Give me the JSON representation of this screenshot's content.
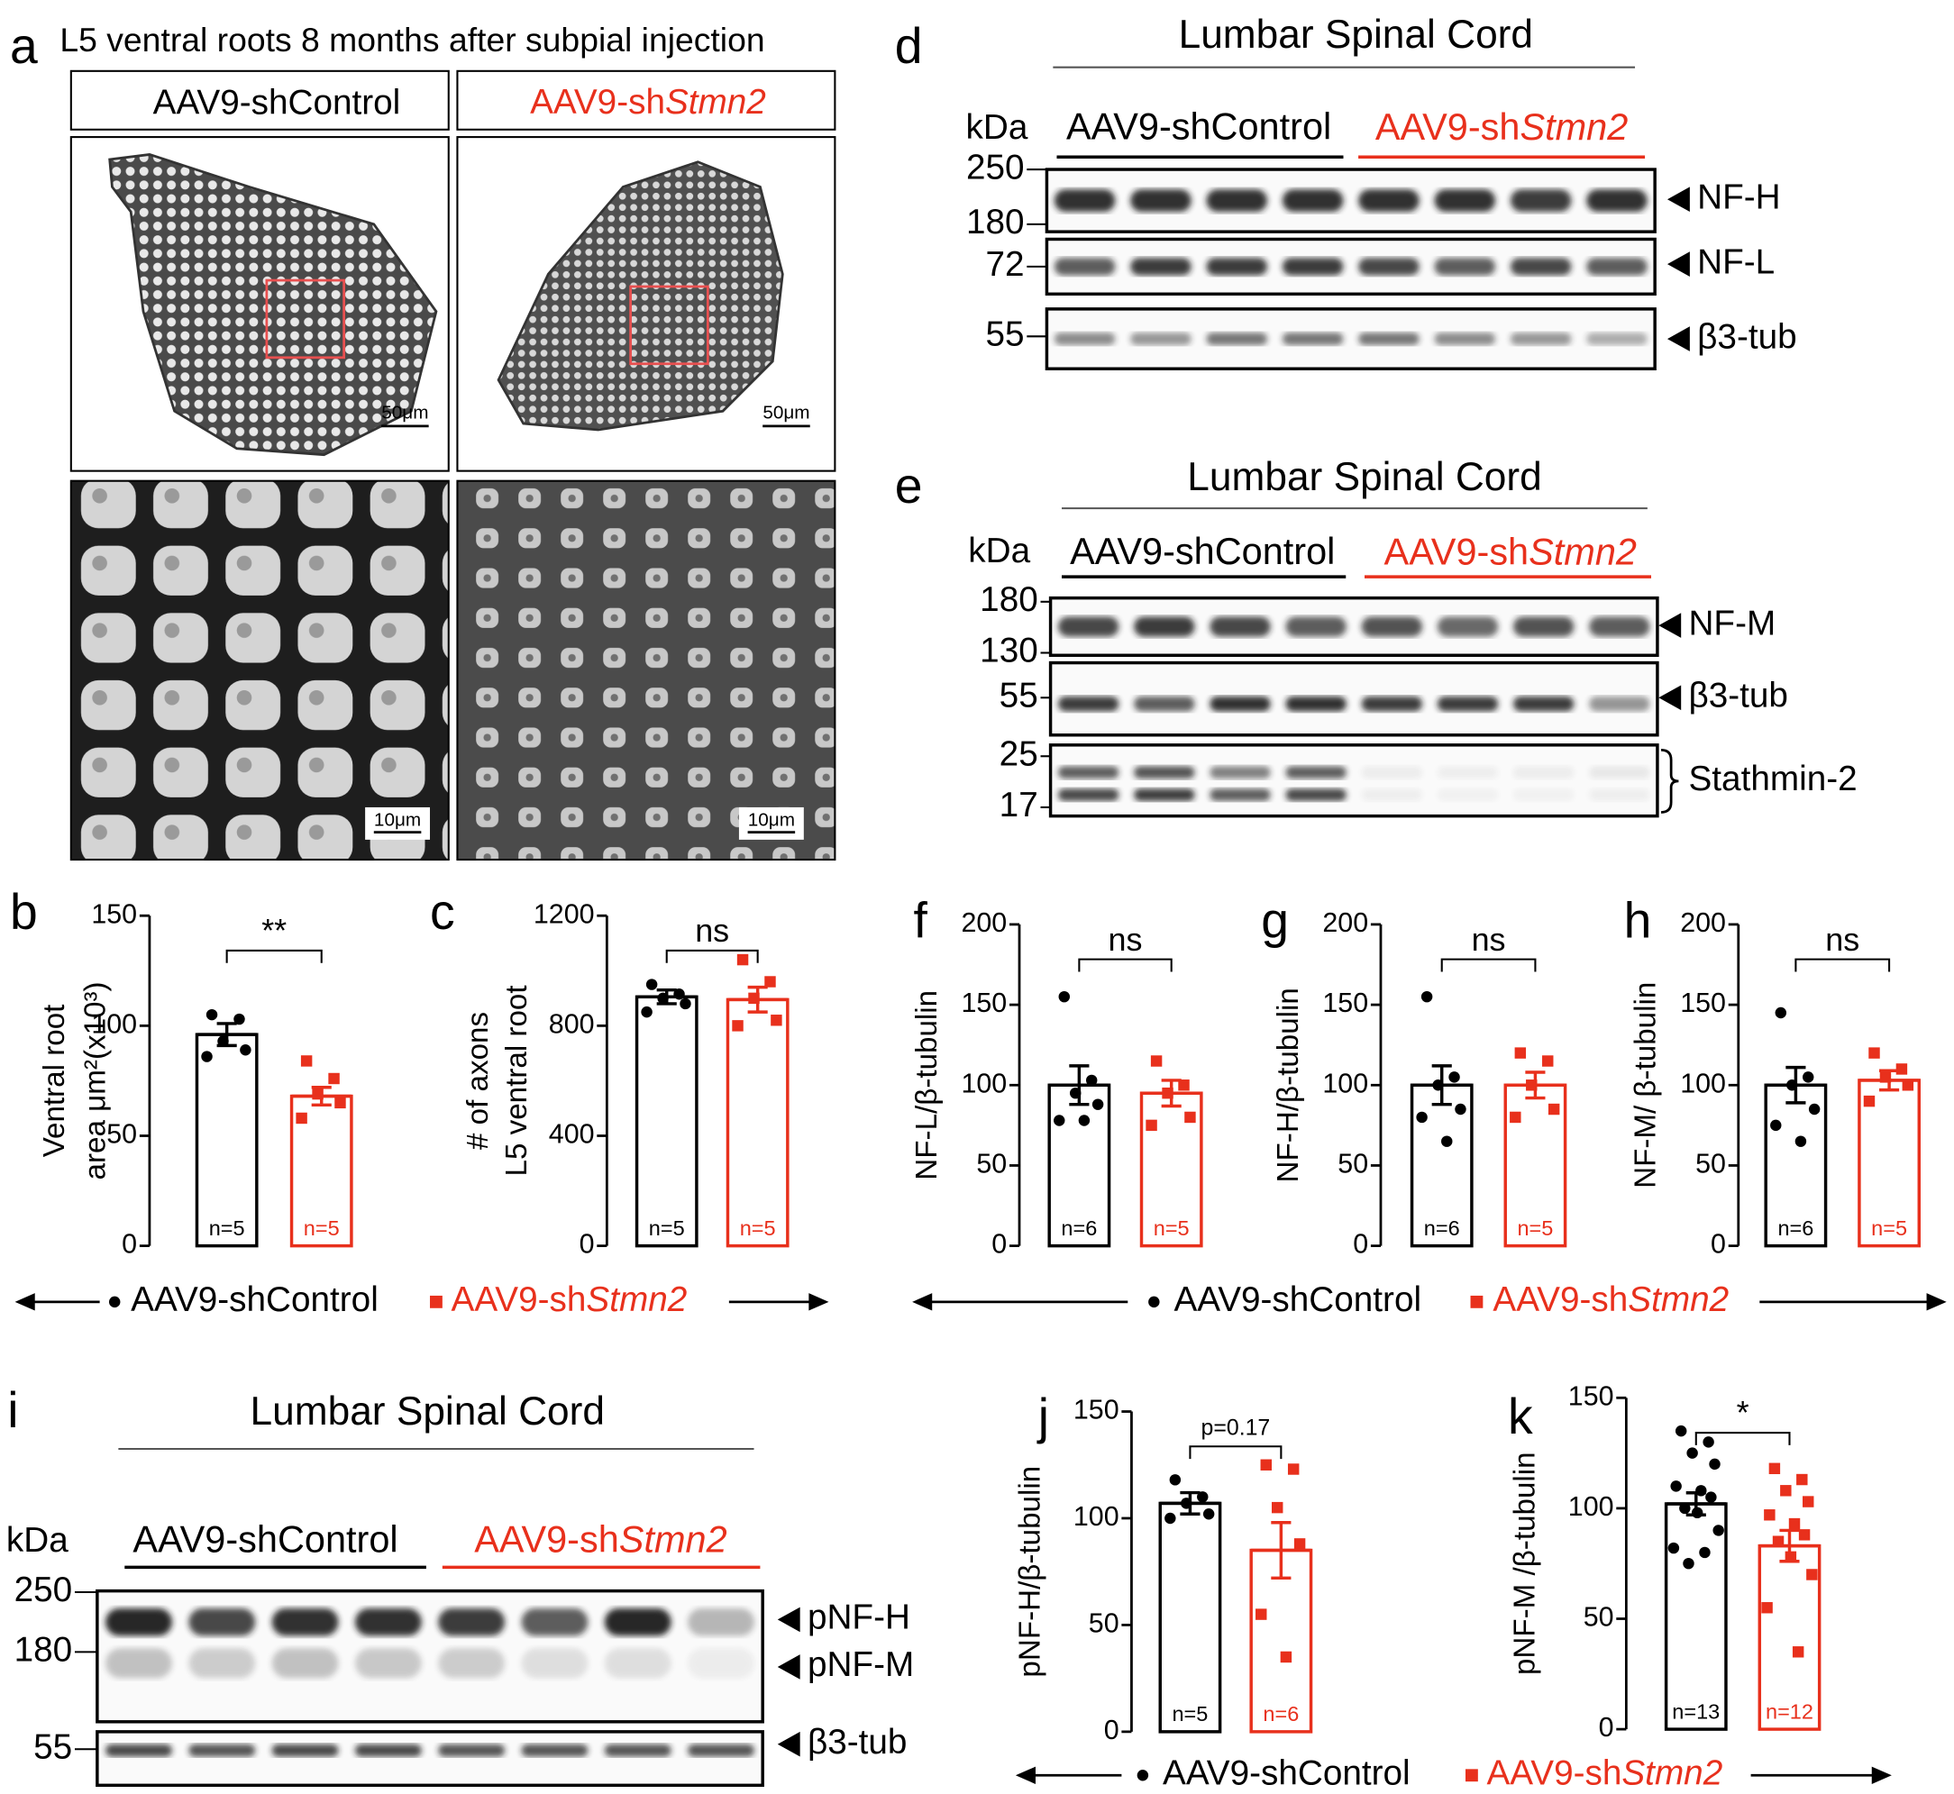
{
  "panel_a": {
    "label": "a",
    "title": "L5 ventral roots 8 months after subpial injection",
    "headers": {
      "control": "AAV9-shControl",
      "knockdown": {
        "prefix": "AAV9-sh",
        "italic": "Stmn2"
      }
    },
    "scale_bars": [
      "50μm",
      "50μm",
      "10μm",
      "10μm"
    ]
  },
  "blots": [
    {
      "label": "d",
      "title": "Lumbar Spinal Cord",
      "kda": "kDa",
      "groups": {
        "control": "AAV9-shControl",
        "knockdown": {
          "prefix": "AAV9-sh",
          "italic": "Stmn2"
        }
      },
      "markers": [
        250,
        180,
        72,
        55
      ],
      "bands": [
        "NF-H",
        "NF-L",
        "β3-tub"
      ]
    },
    {
      "label": "e",
      "title": "Lumbar Spinal Cord",
      "kda": "kDa",
      "groups": {
        "control": "AAV9-shControl",
        "knockdown": {
          "prefix": "AAV9-sh",
          "italic": "Stmn2"
        }
      },
      "markers": [
        180,
        130,
        55,
        25,
        17
      ],
      "bands": [
        "NF-M",
        "β3-tub",
        "Stathmin-2"
      ]
    },
    {
      "label": "i",
      "title": "Lumbar Spinal Cord",
      "kda": "kDa",
      "groups": {
        "control": "AAV9-shControl",
        "knockdown": {
          "prefix": "AAV9-sh",
          "italic": "Stmn2"
        }
      },
      "markers": [
        250,
        180,
        55
      ],
      "bands": [
        "pNF-H",
        "pNF-M",
        "β3-tub"
      ]
    }
  ],
  "legends": [
    {
      "control": "AAV9-shControl",
      "knockdown": {
        "prefix": "AAV9-sh",
        "italic": "Stmn2"
      }
    },
    {
      "control": "AAV9-shControl",
      "knockdown": {
        "prefix": "AAV9-sh",
        "italic": "Stmn2"
      }
    },
    {
      "control": "AAV9-shControl",
      "knockdown": {
        "prefix": "AAV9-sh",
        "italic": "Stmn2"
      }
    }
  ],
  "chart_data": [
    {
      "type": "bar",
      "panel": "b",
      "ylabel": [
        "Ventral root",
        "area μm²(x10³)"
      ],
      "annotation": "**",
      "ylim": [
        0,
        150
      ],
      "yticks": [
        0,
        50,
        100,
        150
      ],
      "colors": [
        "#000000",
        "#e8301c"
      ],
      "values": [
        96,
        68
      ],
      "errors": [
        5,
        4
      ],
      "n_labels": [
        "n=5",
        "n=5"
      ],
      "points": [
        [
          105,
          103,
          93,
          89,
          86
        ],
        [
          84,
          76,
          69,
          65,
          58
        ]
      ]
    },
    {
      "type": "bar",
      "panel": "c",
      "ylabel": [
        "# of axons",
        "L5 ventral root"
      ],
      "annotation": "ns",
      "ylim": [
        0,
        1200
      ],
      "yticks": [
        0,
        400,
        800,
        1200
      ],
      "colors": [
        "#000000",
        "#e8301c"
      ],
      "values": [
        905,
        895
      ],
      "errors": [
        25,
        45
      ],
      "n_labels": [
        "n=5",
        "n=5"
      ],
      "points": [
        [
          950,
          915,
          900,
          880,
          850
        ],
        [
          1040,
          960,
          900,
          820,
          800
        ]
      ]
    },
    {
      "type": "bar",
      "panel": "f",
      "ylabel": [
        "NF-L/β-tubulin"
      ],
      "annotation": "ns",
      "ylim": [
        0,
        200
      ],
      "yticks": [
        0,
        50,
        100,
        150,
        200
      ],
      "colors": [
        "#000000",
        "#e8301c"
      ],
      "values": [
        100,
        95
      ],
      "errors": [
        12,
        8
      ],
      "n_labels": [
        "n=6",
        "n=5"
      ],
      "points": [
        [
          155,
          103,
          95,
          88,
          78,
          78
        ],
        [
          115,
          100,
          95,
          80,
          75
        ]
      ]
    },
    {
      "type": "bar",
      "panel": "g",
      "ylabel": [
        "NF-H/β-tubulin"
      ],
      "annotation": "ns",
      "ylim": [
        0,
        200
      ],
      "yticks": [
        0,
        50,
        100,
        150,
        200
      ],
      "colors": [
        "#000000",
        "#e8301c"
      ],
      "values": [
        100,
        100
      ],
      "errors": [
        12,
        8
      ],
      "n_labels": [
        "n=6",
        "n=5"
      ],
      "points": [
        [
          155,
          105,
          100,
          85,
          80,
          65
        ],
        [
          120,
          115,
          100,
          85,
          80
        ]
      ]
    },
    {
      "type": "bar",
      "panel": "h",
      "ylabel": [
        "NF-M/ β-tubulin"
      ],
      "annotation": "ns",
      "ylim": [
        0,
        200
      ],
      "yticks": [
        0,
        50,
        100,
        150,
        200
      ],
      "colors": [
        "#000000",
        "#e8301c"
      ],
      "values": [
        100,
        103
      ],
      "errors": [
        11,
        6
      ],
      "n_labels": [
        "n=6",
        "n=5"
      ],
      "points": [
        [
          145,
          105,
          100,
          85,
          75,
          65
        ],
        [
          120,
          110,
          105,
          100,
          90
        ]
      ]
    },
    {
      "type": "bar",
      "panel": "j",
      "ylabel": [
        "pNF-H/β-tubulin"
      ],
      "annotation": "p=0.17",
      "ylim": [
        0,
        150
      ],
      "yticks": [
        0,
        50,
        100,
        150
      ],
      "colors": [
        "#000000",
        "#e8301c"
      ],
      "values": [
        107,
        85
      ],
      "errors": [
        5,
        13
      ],
      "n_labels": [
        "n=5",
        "n=6"
      ],
      "points": [
        [
          118,
          110,
          107,
          102,
          100
        ],
        [
          125,
          123,
          105,
          88,
          55,
          35
        ]
      ]
    },
    {
      "type": "bar",
      "panel": "k",
      "ylabel": [
        "pNF-M  /β-tubulin"
      ],
      "annotation": "*",
      "ylim": [
        0,
        150
      ],
      "yticks": [
        0,
        50,
        100,
        150
      ],
      "colors": [
        "#000000",
        "#e8301c"
      ],
      "values": [
        102,
        83
      ],
      "errors": [
        5,
        7
      ],
      "n_labels": [
        "n=13",
        "n=12"
      ],
      "points": [
        [
          135,
          130,
          125,
          120,
          110,
          108,
          105,
          100,
          98,
          90,
          82,
          80,
          75
        ],
        [
          118,
          113,
          108,
          103,
          97,
          93,
          88,
          85,
          78,
          70,
          55,
          35
        ]
      ]
    }
  ]
}
